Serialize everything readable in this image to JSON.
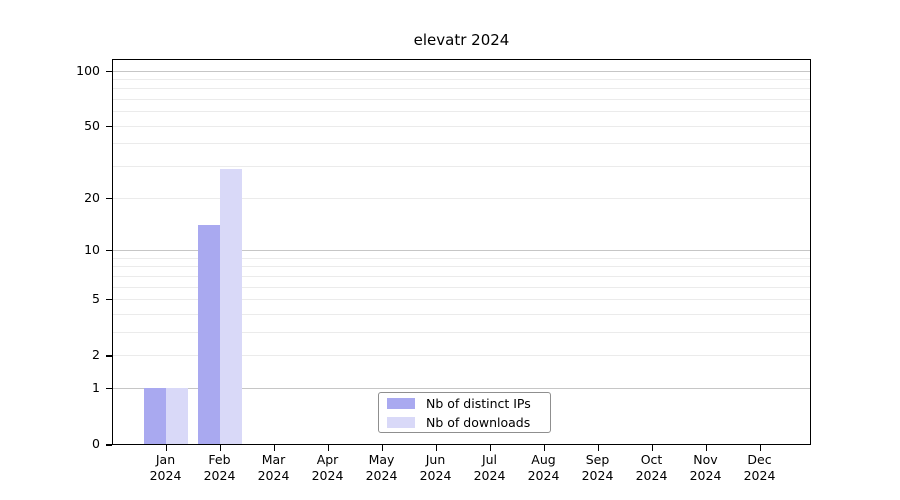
{
  "chart_data": {
    "type": "bar",
    "title": "elevatr 2024",
    "categories": [
      "Jan",
      "Feb",
      "Mar",
      "Apr",
      "May",
      "Jun",
      "Jul",
      "Aug",
      "Sep",
      "Oct",
      "Nov",
      "Dec"
    ],
    "year": "2024",
    "series": [
      {
        "name": "Nb of distinct IPs",
        "color": "#a9a9f0",
        "values": [
          1,
          14,
          0,
          0,
          0,
          0,
          0,
          0,
          0,
          0,
          0,
          0
        ]
      },
      {
        "name": "Nb of downloads",
        "color": "#d9d9f8",
        "values": [
          1,
          29,
          0,
          0,
          0,
          0,
          0,
          0,
          0,
          0,
          0,
          0
        ]
      }
    ],
    "y_axis": {
      "scale": "log1p",
      "tick_values": [
        0,
        1,
        2,
        5,
        10,
        20,
        50,
        100
      ],
      "tick_labels": [
        "0",
        "1",
        "2",
        "5",
        "10",
        "20",
        "50",
        "100"
      ],
      "major_gridlines": [
        1,
        10,
        100
      ],
      "minor_gridlines": [
        2,
        3,
        4,
        5,
        6,
        7,
        8,
        9,
        20,
        30,
        40,
        50,
        60,
        70,
        80,
        90
      ],
      "ylim": [
        0,
        115
      ]
    },
    "x_axis": {
      "label_line2": "2024"
    },
    "grid": "horizontal",
    "legend_position": "bottom-center",
    "colors": {
      "major_grid": "#c6c6c6",
      "minor_grid": "#ebebeb",
      "axis": "#000000",
      "background": "#ffffff"
    }
  }
}
